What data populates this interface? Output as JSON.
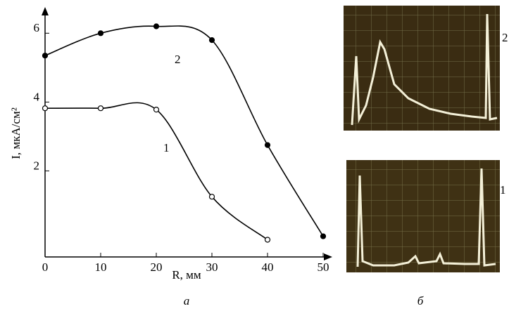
{
  "chart_data": {
    "type": "line",
    "x_label": "R, мм",
    "y_label": "I, мкА/см²",
    "x": [
      0,
      10,
      20,
      30,
      40,
      50
    ],
    "series": [
      {
        "name": "1",
        "color": "#000000",
        "marker": "open",
        "values": [
          3.82,
          3.82,
          3.78,
          1.25,
          0.0,
          null
        ]
      },
      {
        "name": "2",
        "color": "#000000",
        "marker": "filled",
        "values": [
          5.35,
          6.0,
          6.2,
          5.8,
          2.75,
          0.1
        ]
      }
    ],
    "xlim": [
      0,
      52
    ],
    "xticks": [
      0,
      10,
      20,
      30,
      40,
      50
    ],
    "ylim": [
      -0.5,
      6.7
    ],
    "yticks": [
      2,
      4,
      6
    ],
    "grid": false
  },
  "figure": {
    "panel_labels": [
      "а",
      "б"
    ],
    "photo_labels": [
      "2",
      "1"
    ]
  }
}
